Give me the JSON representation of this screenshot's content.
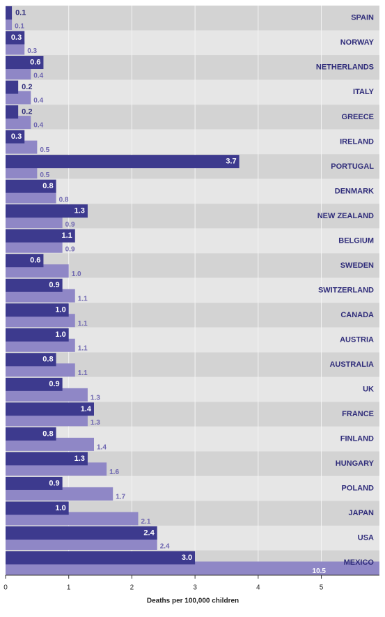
{
  "chart_data": {
    "type": "bar",
    "orientation": "horizontal",
    "x_label": "Deaths per 100,000 children",
    "categories": [
      "SPAIN",
      "NORWAY",
      "NETHERLANDS",
      "ITALY",
      "GREECE",
      "IRELAND",
      "PORTUGAL",
      "DENMARK",
      "NEW ZEALAND",
      "BELGIUM",
      "SWEDEN",
      "SWITZERLAND",
      "CANADA",
      "AUSTRIA",
      "AUSTRALIA",
      "UK",
      "FRANCE",
      "FINLAND",
      "HUNGARY",
      "POLAND",
      "JAPAN",
      "USA",
      "MEXICO"
    ],
    "series": [
      {
        "color": "#3d3a8e",
        "values": [
          0.1,
          0.3,
          0.6,
          0.2,
          0.2,
          0.3,
          3.7,
          0.8,
          1.3,
          1.1,
          0.6,
          0.9,
          1.0,
          1.0,
          0.8,
          0.9,
          1.4,
          0.8,
          1.3,
          0.9,
          1.0,
          2.4,
          3.0
        ],
        "value_labels": [
          "0.1",
          "0.3",
          "0.6",
          "0.2",
          "0.2",
          "0.3",
          "3.7",
          "0.8",
          "1.3",
          "1.1",
          "0.6",
          "0.9",
          "1.0",
          "1.0",
          "0.8",
          "0.9",
          "1.4",
          "0.8",
          "1.3",
          "0.9",
          "1.0",
          "2.4",
          "3.0"
        ]
      },
      {
        "color": "#8f87c6",
        "values": [
          0.1,
          0.3,
          0.4,
          0.4,
          0.4,
          0.5,
          0.5,
          0.8,
          0.9,
          0.9,
          1.0,
          1.1,
          1.1,
          1.1,
          1.1,
          1.3,
          1.3,
          1.4,
          1.6,
          1.7,
          2.1,
          2.4,
          10.5
        ],
        "value_labels": [
          "0.1",
          "0.3",
          "0.4",
          "0.4",
          "0.4",
          "0.5",
          "0.5",
          "0.8",
          "0.9",
          "0.9",
          "1.0",
          "1.1",
          "1.1",
          "1.1",
          "1.1",
          "1.3",
          "1.3",
          "1.4",
          "1.6",
          "1.7",
          "2.1",
          "2.4",
          "10.5"
        ]
      }
    ],
    "xlim": [
      0,
      5.92
    ],
    "xticks": [
      0,
      1,
      2,
      3,
      4,
      5
    ],
    "grid": true
  }
}
